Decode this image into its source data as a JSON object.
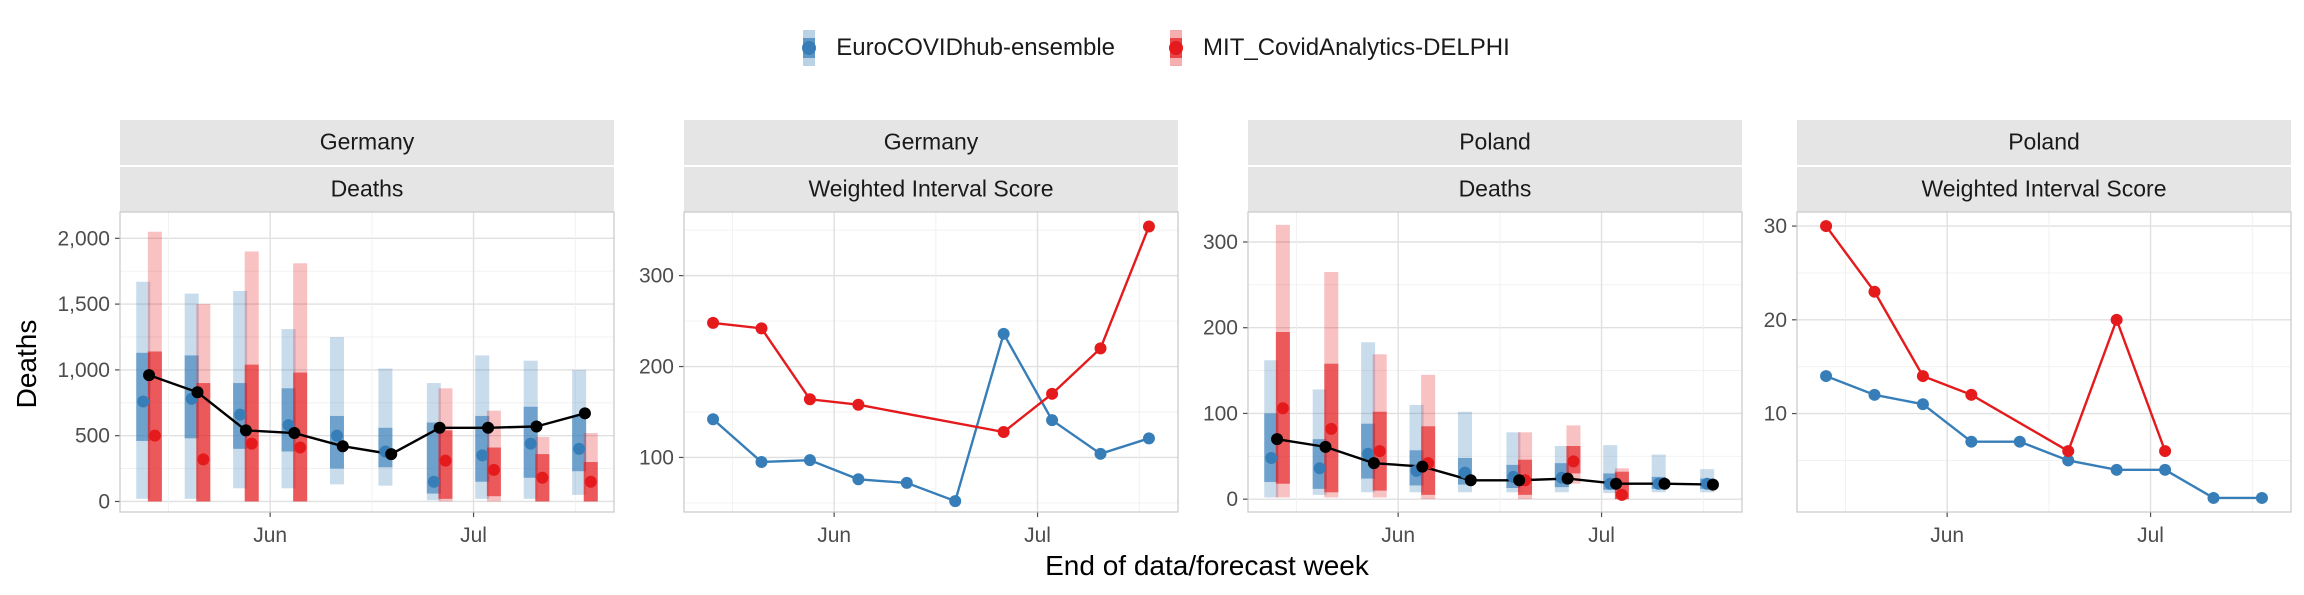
{
  "colors": {
    "ensemble": "#377eb8",
    "delphi": "#e41a1c",
    "observed": "#000000"
  },
  "legend": {
    "items": [
      {
        "label": "EuroCOVIDhub-ensemble",
        "color": "#377eb8",
        "icon": "point-with-interval-icon"
      },
      {
        "label": "MIT_CovidAnalytics-DELPHI",
        "color": "#e41a1c",
        "icon": "point-with-interval-icon"
      }
    ]
  },
  "axes": {
    "xlabel": "End of data/forecast week",
    "ylabel": "Deaths",
    "x_ticks": [
      "Jun",
      "Jul"
    ]
  },
  "chart_data": [
    {
      "type": "line",
      "location": "Germany",
      "target": "Deaths",
      "x": [
        0,
        1,
        2,
        3,
        4,
        5,
        6,
        7,
        8,
        9
      ],
      "x_ticks": {
        "Jun": 2.5,
        "Jul": 6.7
      },
      "xlim": [
        -0.6,
        9.6
      ],
      "ylim": [
        -80,
        2200
      ],
      "yticks": [
        0,
        500,
        1000,
        1500,
        2000
      ],
      "ytick_labels": [
        "0",
        "500",
        "1,000",
        "1,500",
        "2,000"
      ],
      "observed": [
        960,
        830,
        540,
        520,
        420,
        360,
        560,
        560,
        570,
        670
      ],
      "series": [
        {
          "key": "ensemble",
          "name": "EuroCOVIDhub-ensemble",
          "x": [
            -0.12,
            0.88,
            1.88,
            2.88,
            3.88,
            4.88,
            5.88,
            6.88,
            7.88,
            8.88
          ],
          "median": [
            760,
            780,
            660,
            580,
            500,
            380,
            150,
            350,
            440,
            400
          ],
          "inner": [
            [
              460,
              1130
            ],
            [
              480,
              1110
            ],
            [
              400,
              900
            ],
            [
              380,
              860
            ],
            [
              250,
              650
            ],
            [
              260,
              560
            ],
            [
              60,
              600
            ],
            [
              150,
              650
            ],
            [
              180,
              720
            ],
            [
              230,
              650
            ]
          ],
          "outer": [
            [
              20,
              1670
            ],
            [
              20,
              1580
            ],
            [
              100,
              1600
            ],
            [
              100,
              1310
            ],
            [
              130,
              1250
            ],
            [
              120,
              1010
            ],
            [
              10,
              900
            ],
            [
              20,
              1110
            ],
            [
              20,
              1070
            ],
            [
              50,
              1000
            ]
          ]
        },
        {
          "key": "delphi",
          "name": "MIT_CovidAnalytics-DELPHI",
          "x": [
            0.12,
            1.12,
            2.12,
            3.12,
            null,
            null,
            6.12,
            7.12,
            8.12,
            9.12
          ],
          "median": [
            500,
            320,
            440,
            410,
            null,
            null,
            310,
            240,
            180,
            150
          ],
          "inner": [
            [
              0,
              1140
            ],
            [
              0,
              900
            ],
            [
              0,
              1040
            ],
            [
              0,
              980
            ],
            null,
            null,
            [
              20,
              540
            ],
            [
              40,
              410
            ],
            [
              0,
              360
            ],
            [
              0,
              300
            ]
          ],
          "outer": [
            [
              0,
              2050
            ],
            [
              0,
              1500
            ],
            [
              0,
              1900
            ],
            [
              0,
              1810
            ],
            null,
            null,
            [
              0,
              860
            ],
            [
              0,
              690
            ],
            [
              0,
              490
            ],
            [
              0,
              520
            ]
          ]
        }
      ]
    },
    {
      "type": "line",
      "location": "Germany",
      "target": "Weighted Interval Score",
      "x": [
        0,
        1,
        2,
        3,
        4,
        5,
        6,
        7,
        8,
        9
      ],
      "x_ticks": {
        "Jun": 2.5,
        "Jul": 6.7
      },
      "xlim": [
        -0.6,
        9.6
      ],
      "ylim": [
        40,
        370
      ],
      "yticks": [
        100,
        200,
        300
      ],
      "ytick_labels": [
        "100",
        "200",
        "300"
      ],
      "series": [
        {
          "key": "ensemble",
          "name": "EuroCOVIDhub-ensemble",
          "values": [
            142,
            95,
            97,
            76,
            72,
            52,
            236,
            141,
            104,
            121
          ]
        },
        {
          "key": "delphi",
          "name": "MIT_CovidAnalytics-DELPHI",
          "values": [
            248,
            242,
            164,
            158,
            null,
            null,
            128,
            170,
            220,
            354
          ]
        }
      ]
    },
    {
      "type": "line",
      "location": "Poland",
      "target": "Deaths",
      "x": [
        0,
        1,
        2,
        3,
        4,
        5,
        6,
        7,
        8,
        9
      ],
      "x_ticks": {
        "Jun": 2.5,
        "Jul": 6.7
      },
      "xlim": [
        -0.6,
        9.6
      ],
      "ylim": [
        -15,
        335
      ],
      "yticks": [
        0,
        100,
        200,
        300
      ],
      "ytick_labels": [
        "0",
        "100",
        "200",
        "300"
      ],
      "observed": [
        70,
        61,
        42,
        38,
        22,
        22,
        24,
        18,
        18,
        17
      ],
      "series": [
        {
          "key": "ensemble",
          "name": "EuroCOVIDhub-ensemble",
          "x": [
            -0.12,
            0.88,
            1.88,
            2.88,
            3.88,
            4.88,
            5.88,
            6.88,
            7.88,
            8.88
          ],
          "median": [
            48,
            36,
            53,
            33,
            31,
            26,
            25,
            18,
            18,
            18
          ],
          "inner": [
            [
              20,
              100
            ],
            [
              12,
              70
            ],
            [
              24,
              88
            ],
            [
              16,
              57
            ],
            [
              17,
              48
            ],
            [
              13,
              40
            ],
            [
              14,
              42
            ],
            [
              11,
              30
            ],
            [
              12,
              26
            ],
            [
              12,
              24
            ]
          ],
          "outer": [
            [
              2,
              162
            ],
            [
              5,
              128
            ],
            [
              8,
              183
            ],
            [
              8,
              110
            ],
            [
              8,
              102
            ],
            [
              8,
              78
            ],
            [
              8,
              62
            ],
            [
              7,
              63
            ],
            [
              8,
              52
            ],
            [
              8,
              35
            ]
          ]
        },
        {
          "key": "delphi",
          "name": "MIT_CovidAnalytics-DELPHI",
          "x": [
            0.12,
            1.12,
            2.12,
            3.12,
            null,
            5.12,
            6.12,
            7.12,
            null,
            null
          ],
          "median": [
            106,
            82,
            56,
            42,
            null,
            22,
            44,
            5,
            null,
            null
          ],
          "inner": [
            [
              18,
              195
            ],
            [
              8,
              158
            ],
            [
              10,
              102
            ],
            [
              5,
              85
            ],
            null,
            [
              5,
              46
            ],
            [
              30,
              62
            ],
            [
              0,
              32
            ],
            null,
            null
          ],
          "outer": [
            [
              2,
              320
            ],
            [
              2,
              265
            ],
            [
              2,
              169
            ],
            [
              0,
              145
            ],
            null,
            [
              0,
              78
            ],
            [
              18,
              86
            ],
            [
              0,
              36
            ],
            null,
            null
          ]
        }
      ]
    },
    {
      "type": "line",
      "location": "Poland",
      "target": "Weighted Interval Score",
      "x": [
        0,
        1,
        2,
        3,
        4,
        5,
        6,
        7,
        8,
        9
      ],
      "x_ticks": {
        "Jun": 2.5,
        "Jul": 6.7
      },
      "xlim": [
        -0.6,
        9.6
      ],
      "ylim": [
        -0.5,
        31.5
      ],
      "yticks": [
        10,
        20,
        30
      ],
      "ytick_labels": [
        "10",
        "20",
        "30"
      ],
      "series": [
        {
          "key": "ensemble",
          "name": "EuroCOVIDhub-ensemble",
          "values": [
            14,
            12,
            11,
            7,
            7,
            5,
            4,
            4,
            1,
            1
          ]
        },
        {
          "key": "delphi",
          "name": "MIT_CovidAnalytics-DELPHI",
          "values": [
            30,
            23,
            14,
            12,
            null,
            6,
            20,
            6,
            null,
            null
          ]
        }
      ]
    }
  ]
}
